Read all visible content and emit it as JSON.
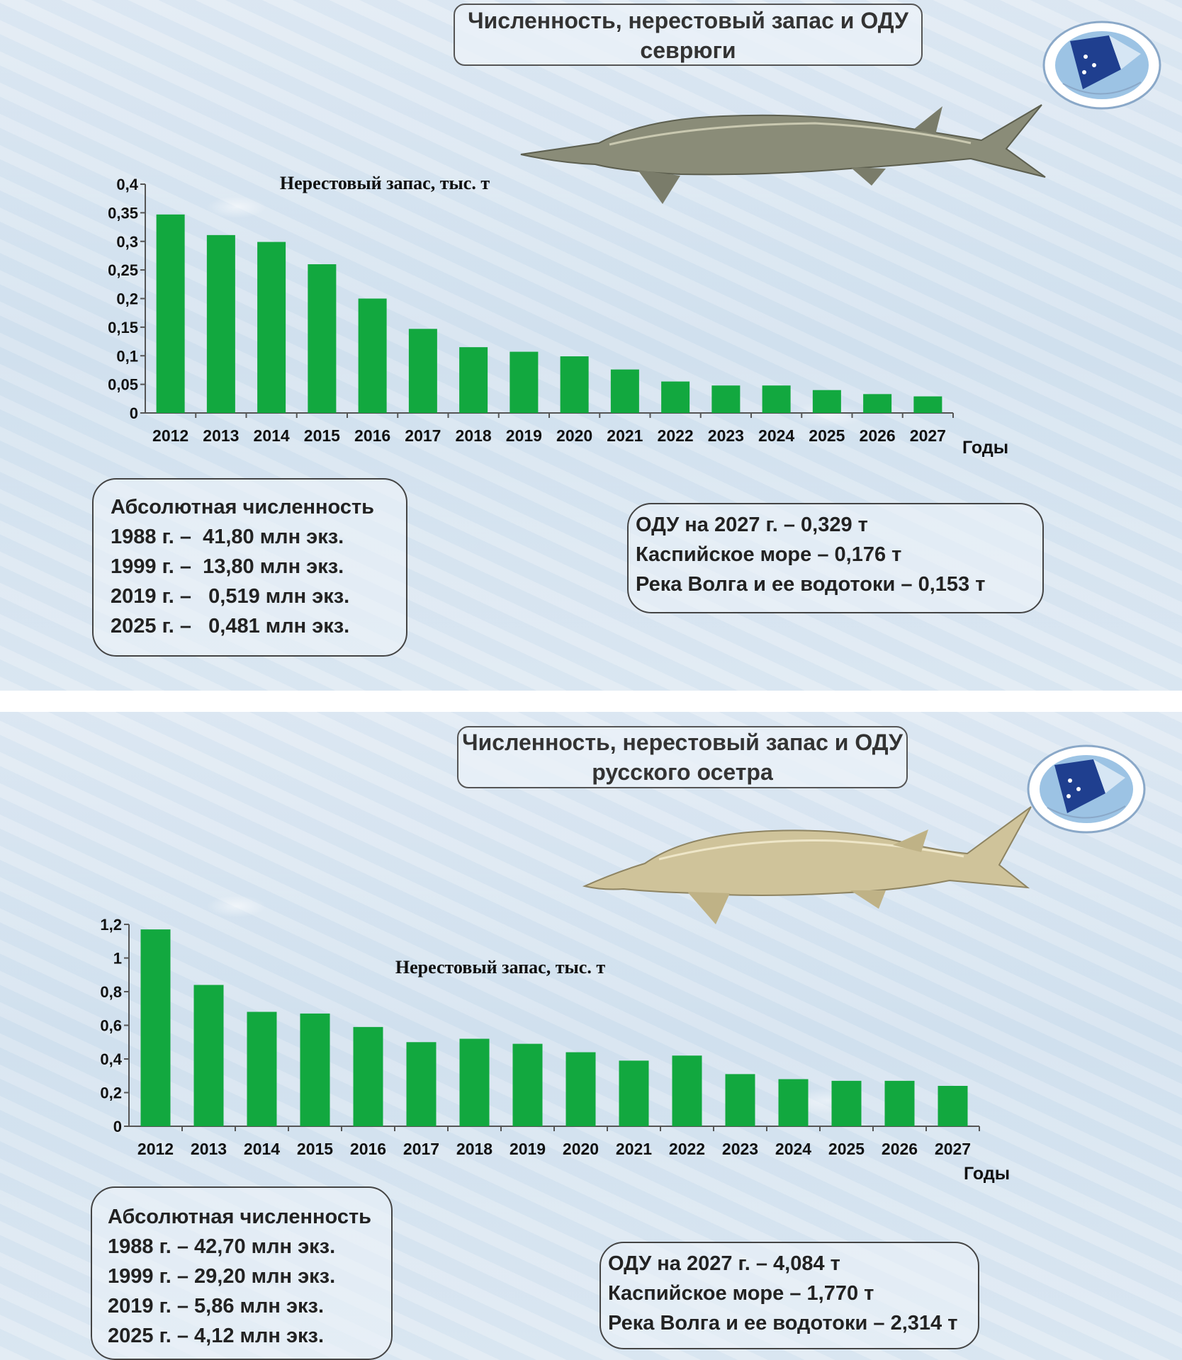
{
  "slides": [
    {
      "title_line1": "Численность, нерестовый запас и ОДУ",
      "title_line2": "севрюги",
      "abs_title": "Абсолютная численность",
      "abs_lines": [
        "1988 г. –  41,80 млн экз.",
        "1999 г. –  13,80 млн экз.",
        "2019 г. –   0,519 млн экз.",
        "2025 г. –   0,481 млн экз."
      ],
      "odu_lines": [
        "ОДУ на 2027 г. – 0,329 т",
        "Каспийское море – 0,176 т",
        "Река Волга и ее водотоки – 0,153 т"
      ]
    },
    {
      "title_line1": "Численность, нерестовый запас и ОДУ",
      "title_line2": "русского осетра",
      "abs_title": "Абсолютная численность",
      "abs_lines": [
        "1988 г. – 42,70 млн экз.",
        "1999 г. – 29,20 млн экз.",
        "2019 г. – 5,86 млн экз.",
        "2025 г. – 4,12 млн экз."
      ],
      "odu_lines": [
        "ОДУ на 2027 г. – 4,084 т",
        "Каспийское море – 1,770 т",
        "Река Волга и ее водотоки – 2,314 т"
      ]
    }
  ],
  "colors": {
    "bar": "#12a83f",
    "axis": "#555555"
  },
  "icons": [
    "vniro-logo-icon",
    "sturgeon-fish-icon"
  ],
  "chart_data": [
    {
      "type": "bar",
      "title": "Нерестовый запас, тыс. т",
      "xlabel": "Годы",
      "ylabel": "",
      "categories": [
        "2012",
        "2013",
        "2014",
        "2015",
        "2016",
        "2017",
        "2018",
        "2019",
        "2020",
        "2021",
        "2022",
        "2023",
        "2024",
        "2025",
        "2026",
        "2027"
      ],
      "values": [
        0.347,
        0.311,
        0.299,
        0.26,
        0.2,
        0.147,
        0.115,
        0.107,
        0.099,
        0.076,
        0.055,
        0.048,
        0.048,
        0.04,
        0.033,
        0.029
      ],
      "ylim": [
        0,
        0.4
      ],
      "yticks": [
        0,
        0.05,
        0.1,
        0.15,
        0.2,
        0.25,
        0.3,
        0.35,
        0.4
      ],
      "ytick_labels": [
        "0",
        "0,05",
        "0,1",
        "0,15",
        "0,2",
        "0,25",
        "0,3",
        "0,35",
        "0,4"
      ],
      "grid": false,
      "legend": "none"
    },
    {
      "type": "bar",
      "title": "Нерестовый запас, тыс. т",
      "xlabel": "Годы",
      "ylabel": "",
      "categories": [
        "2012",
        "2013",
        "2014",
        "2015",
        "2016",
        "2017",
        "2018",
        "2019",
        "2020",
        "2021",
        "2022",
        "2023",
        "2024",
        "2025",
        "2026",
        "2027"
      ],
      "values": [
        1.17,
        0.84,
        0.68,
        0.67,
        0.59,
        0.5,
        0.52,
        0.49,
        0.44,
        0.39,
        0.42,
        0.31,
        0.28,
        0.27,
        0.27,
        0.24
      ],
      "ylim": [
        0,
        1.2
      ],
      "yticks": [
        0,
        0.2,
        0.4,
        0.6,
        0.8,
        1,
        1.2
      ],
      "ytick_labels": [
        "0",
        "0,2",
        "0,4",
        "0,6",
        "0,8",
        "1",
        "1,2"
      ],
      "grid": false,
      "legend": "none"
    }
  ]
}
